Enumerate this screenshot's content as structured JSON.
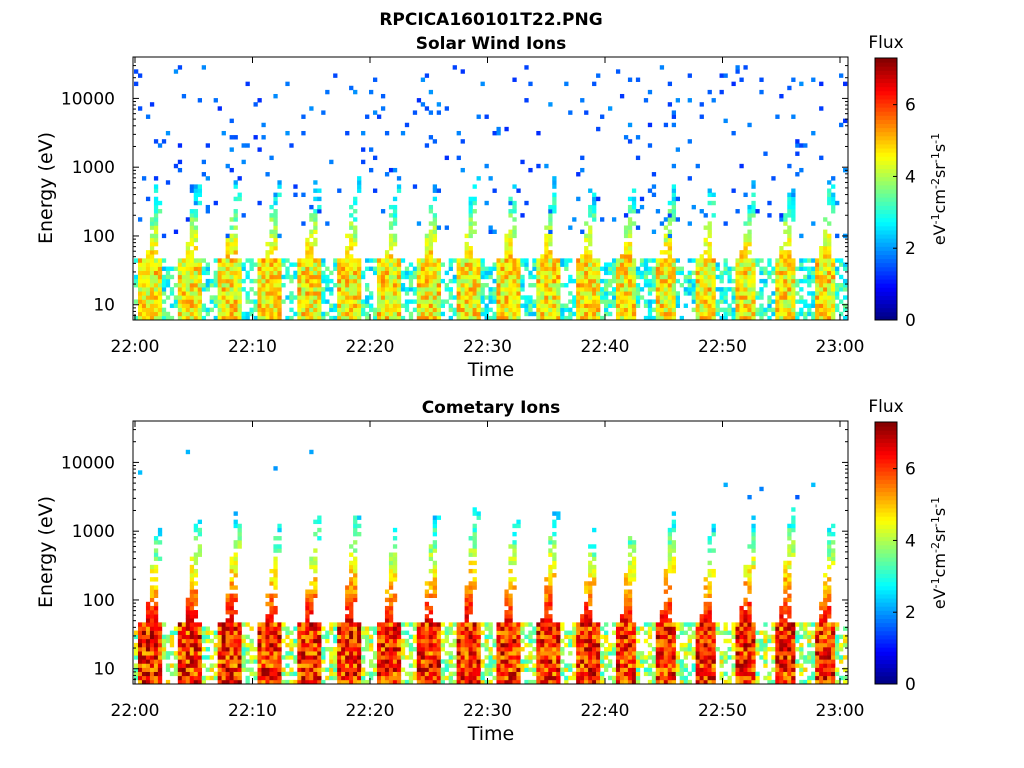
{
  "figure_title": "RPCICA160101T22.PNG",
  "chart_data": [
    {
      "type": "heatmap",
      "title": "Solar Wind Ions",
      "xlabel": "Time",
      "ylabel": "Energy (eV)",
      "x_ticks": [
        "22:00",
        "22:10",
        "22:20",
        "22:30",
        "22:40",
        "22:50",
        "23:00"
      ],
      "x_range": [
        "22:00",
        "23:00"
      ],
      "y_scale": "log",
      "y_ticks": [
        10,
        100,
        1000,
        10000
      ],
      "y_tick_labels": [
        "10",
        "100",
        "1000",
        "10000"
      ],
      "y_range": [
        6,
        40000
      ],
      "colorbar": {
        "label": "Flux",
        "unit": "eV⁻¹cm⁻²sr⁻¹s⁻¹",
        "unit_parts": [
          "eV",
          "-1",
          "cm",
          "-2",
          "sr",
          "-1",
          "s",
          "-1"
        ],
        "range": [
          0,
          7.3
        ],
        "ticks": [
          0,
          2,
          4,
          6
        ],
        "colormap": "jet"
      },
      "background": "#ffffff",
      "pattern": {
        "burst_period_minutes": 3.33,
        "burst_count": 18,
        "low_energy_band_eV": [
          6,
          45
        ],
        "low_energy_band_flux": 5.0,
        "plume_top_eV": 600,
        "plume_flux_at_top": 2.2,
        "scattered_background_flux": 1.2,
        "scattered_range_eV": [
          100,
          30000
        ]
      }
    },
    {
      "type": "heatmap",
      "title": "Cometary Ions",
      "xlabel": "Time",
      "ylabel": "Energy (eV)",
      "x_ticks": [
        "22:00",
        "22:10",
        "22:20",
        "22:30",
        "22:40",
        "22:50",
        "23:00"
      ],
      "x_range": [
        "22:00",
        "23:00"
      ],
      "y_scale": "log",
      "y_ticks": [
        10,
        100,
        1000,
        10000
      ],
      "y_tick_labels": [
        "10",
        "100",
        "1000",
        "10000"
      ],
      "y_range": [
        6,
        40000
      ],
      "colorbar": {
        "label": "Flux",
        "unit": "eV⁻¹cm⁻²sr⁻¹s⁻¹",
        "unit_parts": [
          "eV",
          "-1",
          "cm",
          "-2",
          "sr",
          "-1",
          "s",
          "-1"
        ],
        "range": [
          0,
          7.3
        ],
        "ticks": [
          0,
          2,
          4,
          6
        ],
        "colormap": "jet"
      },
      "background": "#ffffff",
      "pattern": {
        "burst_period_minutes": 3.33,
        "burst_count": 18,
        "low_energy_band_eV": [
          6,
          45
        ],
        "low_energy_band_flux": 6.6,
        "plume_top_eV": [
          500,
          2200
        ],
        "plume_flux_at_top": 2.5,
        "scattered_background_flux": 1.5,
        "scattered_range_eV": [
          3000,
          15000
        ]
      }
    }
  ]
}
